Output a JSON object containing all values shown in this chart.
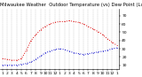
{
  "title": "Milwaukee Weather  Outdoor Temperature (vs) Dew Point (Last 24 Hours)",
  "bg_color": "#ffffff",
  "plot_bg_color": "#ffffff",
  "grid_color": "#999999",
  "x_labels": [
    "1",
    "2",
    "3",
    "4",
    "5",
    "6",
    "7",
    "8",
    "9",
    "10",
    "11",
    "12",
    "1",
    "2",
    "3",
    "4",
    "5",
    "6",
    "7",
    "8",
    "9",
    "10",
    "11",
    "12",
    "1"
  ],
  "ylim": [
    5,
    78
  ],
  "yticks": [
    10,
    20,
    30,
    40,
    50,
    60,
    70
  ],
  "temp_color": "#dd0000",
  "dew_color": "#0000cc",
  "temp_data": [
    18,
    17,
    16,
    16,
    18,
    28,
    40,
    47,
    53,
    57,
    60,
    62,
    63,
    63,
    64,
    63,
    62,
    60,
    57,
    54,
    51,
    47,
    42,
    38,
    34
  ],
  "dew_data": [
    10,
    10,
    10,
    10,
    11,
    12,
    14,
    17,
    21,
    25,
    27,
    29,
    30,
    29,
    27,
    25,
    24,
    23,
    24,
    25,
    26,
    27,
    28,
    30,
    31
  ],
  "title_fontsize": 3.8,
  "tick_fontsize": 3.2,
  "line_width": 0.7,
  "marker_size": 1.0
}
